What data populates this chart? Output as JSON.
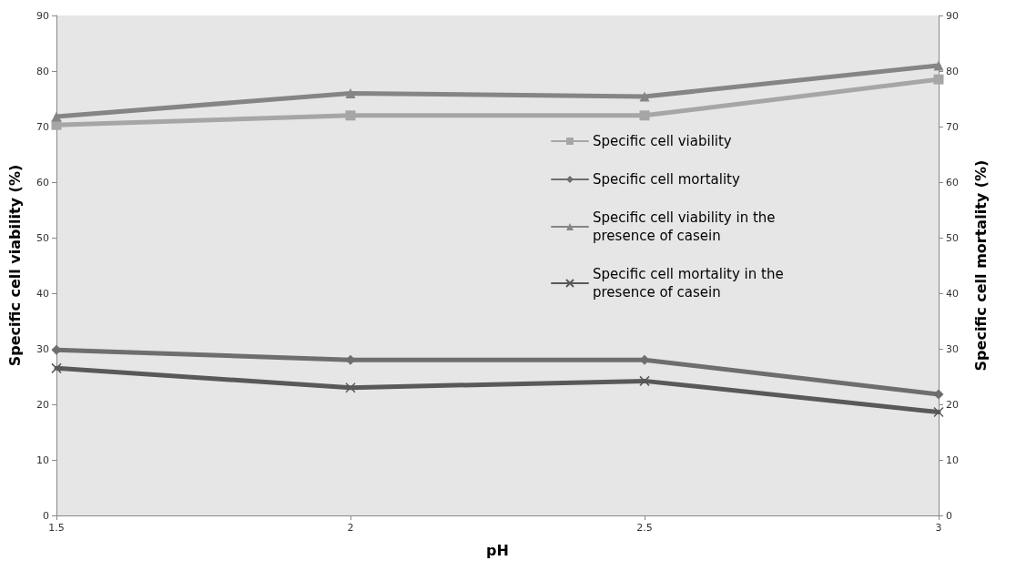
{
  "chart_data": {
    "type": "line",
    "xlabel": "pH",
    "ylabel": "Specific cell viability (%)",
    "y2label": "Specific cell mortality (%)",
    "x": [
      1.5,
      2,
      2.5,
      3
    ],
    "xlim": [
      1.5,
      3
    ],
    "xticks": [
      1.5,
      2,
      2.5,
      3
    ],
    "ylim": [
      0,
      90
    ],
    "yticks": [
      0,
      10,
      20,
      30,
      40,
      50,
      60,
      70,
      80,
      90
    ],
    "y2lim": [
      0,
      90
    ],
    "y2ticks": [
      0,
      10,
      20,
      30,
      40,
      50,
      60,
      70,
      80,
      90
    ],
    "grid": false,
    "legend": "right",
    "line_style": "solid",
    "series": [
      {
        "name": "Specific cell viability",
        "color": "#a6a6a6",
        "marker": "square",
        "values": [
          70.3,
          72,
          72,
          78.5
        ]
      },
      {
        "name": "Specific cell mortality",
        "color": "#6e6e6e",
        "marker": "diamond",
        "axis": "y2",
        "values": [
          29.8,
          28,
          28,
          21.8
        ]
      },
      {
        "name": "Specific cell viability in the presence of casein",
        "color": "#858585",
        "marker": "triangle",
        "values": [
          71.8,
          76,
          75.4,
          81
        ]
      },
      {
        "name": "Specific cell mortality in the presence of casein",
        "color": "#595959",
        "marker": "cross",
        "axis": "y2",
        "values": [
          26.5,
          23,
          24.2,
          18.6
        ]
      }
    ]
  }
}
